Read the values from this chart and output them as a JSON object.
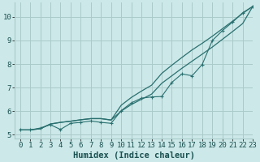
{
  "xlabel": "Humidex (Indice chaleur)",
  "ylabel": "",
  "bg_color": "#cce8e8",
  "grid_color": "#aacaca",
  "line_color": "#2a7070",
  "xlim": [
    -0.5,
    23
  ],
  "ylim": [
    4.85,
    10.6
  ],
  "yticks": [
    5,
    6,
    7,
    8,
    9,
    10
  ],
  "xticks": [
    0,
    1,
    2,
    3,
    4,
    5,
    6,
    7,
    8,
    9,
    10,
    11,
    12,
    13,
    14,
    15,
    16,
    17,
    18,
    19,
    20,
    21,
    22,
    23
  ],
  "line1_x": [
    0,
    1,
    2,
    3,
    4,
    5,
    6,
    7,
    8,
    9,
    10,
    11,
    12,
    13,
    14,
    15,
    16,
    17,
    18,
    19,
    20,
    21,
    22,
    23
  ],
  "line1_y": [
    5.2,
    5.2,
    5.25,
    5.45,
    5.52,
    5.57,
    5.63,
    5.68,
    5.68,
    5.62,
    6.25,
    6.58,
    6.85,
    7.1,
    7.6,
    7.95,
    8.28,
    8.6,
    8.88,
    9.18,
    9.5,
    9.82,
    10.15,
    10.45
  ],
  "line2_x": [
    0,
    1,
    2,
    3,
    4,
    5,
    6,
    7,
    8,
    9,
    10,
    11,
    12,
    13,
    14,
    15,
    16,
    17,
    18,
    19,
    20,
    21,
    22,
    23
  ],
  "line2_y": [
    5.2,
    5.2,
    5.25,
    5.45,
    5.52,
    5.57,
    5.63,
    5.68,
    5.68,
    5.62,
    6.0,
    6.28,
    6.5,
    6.72,
    7.18,
    7.5,
    7.82,
    8.12,
    8.42,
    8.72,
    9.05,
    9.38,
    9.72,
    10.45
  ],
  "data_x": [
    0,
    1,
    2,
    3,
    4,
    5,
    6,
    7,
    8,
    9,
    10,
    11,
    12,
    13,
    14,
    15,
    16,
    17,
    18,
    19,
    20,
    21,
    22,
    23
  ],
  "data_y": [
    5.2,
    5.2,
    5.28,
    5.42,
    5.22,
    5.48,
    5.52,
    5.58,
    5.52,
    5.48,
    6.02,
    6.35,
    6.55,
    6.6,
    6.62,
    7.22,
    7.58,
    7.5,
    7.98,
    9.0,
    9.42,
    9.78,
    10.18,
    10.45
  ],
  "font_family": "monospace",
  "tick_fontsize": 6.5,
  "label_fontsize": 7.5
}
